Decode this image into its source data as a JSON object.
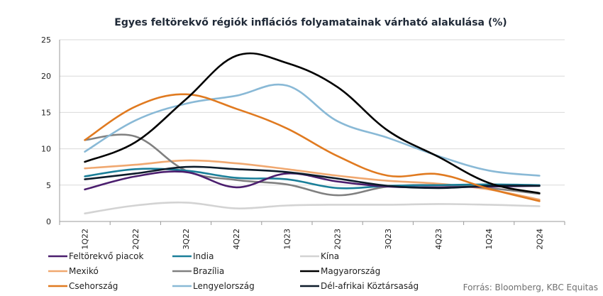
{
  "chart_data": {
    "type": "line",
    "title": "Egyes feltörekvő régiók inflációs folyamatainak várható alakulása (%)",
    "xlabel": "",
    "ylabel": "",
    "ylim": [
      0,
      25
    ],
    "yticks": [
      "0",
      "5",
      "10",
      "15",
      "20",
      "25"
    ],
    "categories": [
      "1Q22",
      "2Q22",
      "3Q22",
      "4Q22",
      "1Q23",
      "2Q23",
      "3Q23",
      "4Q23",
      "1Q24",
      "2Q24"
    ],
    "grid": "horizontal",
    "legend_position": "bottom",
    "series": [
      {
        "name": "Feltörekvő piacok",
        "color": "#4b1e6e",
        "values": [
          4.4,
          6.2,
          6.8,
          4.7,
          6.6,
          5.5,
          4.8,
          4.7,
          4.8,
          4.9
        ]
      },
      {
        "name": "India",
        "color": "#1a7f99",
        "values": [
          6.2,
          7.2,
          7.0,
          6.0,
          5.8,
          4.6,
          4.9,
          5.0,
          5.1,
          5.0
        ]
      },
      {
        "name": "Kína",
        "color": "#d3d3d3",
        "values": [
          1.1,
          2.2,
          2.6,
          1.8,
          2.2,
          2.3,
          2.3,
          2.4,
          2.3,
          2.1
        ]
      },
      {
        "name": "Mexikó",
        "color": "#f0a870",
        "values": [
          7.3,
          7.8,
          8.4,
          8.0,
          7.2,
          6.3,
          5.6,
          5.2,
          4.4,
          3.0
        ]
      },
      {
        "name": "Brazília",
        "color": "#808080",
        "values": [
          11.2,
          11.7,
          7.0,
          5.7,
          5.1,
          3.6,
          4.8,
          5.0,
          4.6,
          3.8
        ]
      },
      {
        "name": "Magyarország",
        "color": "#000000",
        "values": [
          8.2,
          10.9,
          16.8,
          22.8,
          21.8,
          18.5,
          12.5,
          8.9,
          5.3,
          3.9
        ]
      },
      {
        "name": "Csehország",
        "color": "#e07a20",
        "values": [
          11.2,
          15.8,
          17.5,
          15.5,
          12.8,
          9.0,
          6.3,
          6.5,
          4.5,
          2.8
        ]
      },
      {
        "name": "Lengyelország",
        "color": "#89b9d6",
        "values": [
          9.6,
          13.9,
          16.2,
          17.3,
          18.7,
          13.8,
          11.5,
          9.0,
          7.0,
          6.3
        ]
      },
      {
        "name": "Dél-afrikai Köztársaság",
        "color": "#0d1b2a",
        "values": [
          5.8,
          6.6,
          7.5,
          7.2,
          6.8,
          5.9,
          4.9,
          4.6,
          4.9,
          4.9
        ]
      }
    ],
    "source": "Forrás: Bloomberg, KBC Equitas"
  }
}
